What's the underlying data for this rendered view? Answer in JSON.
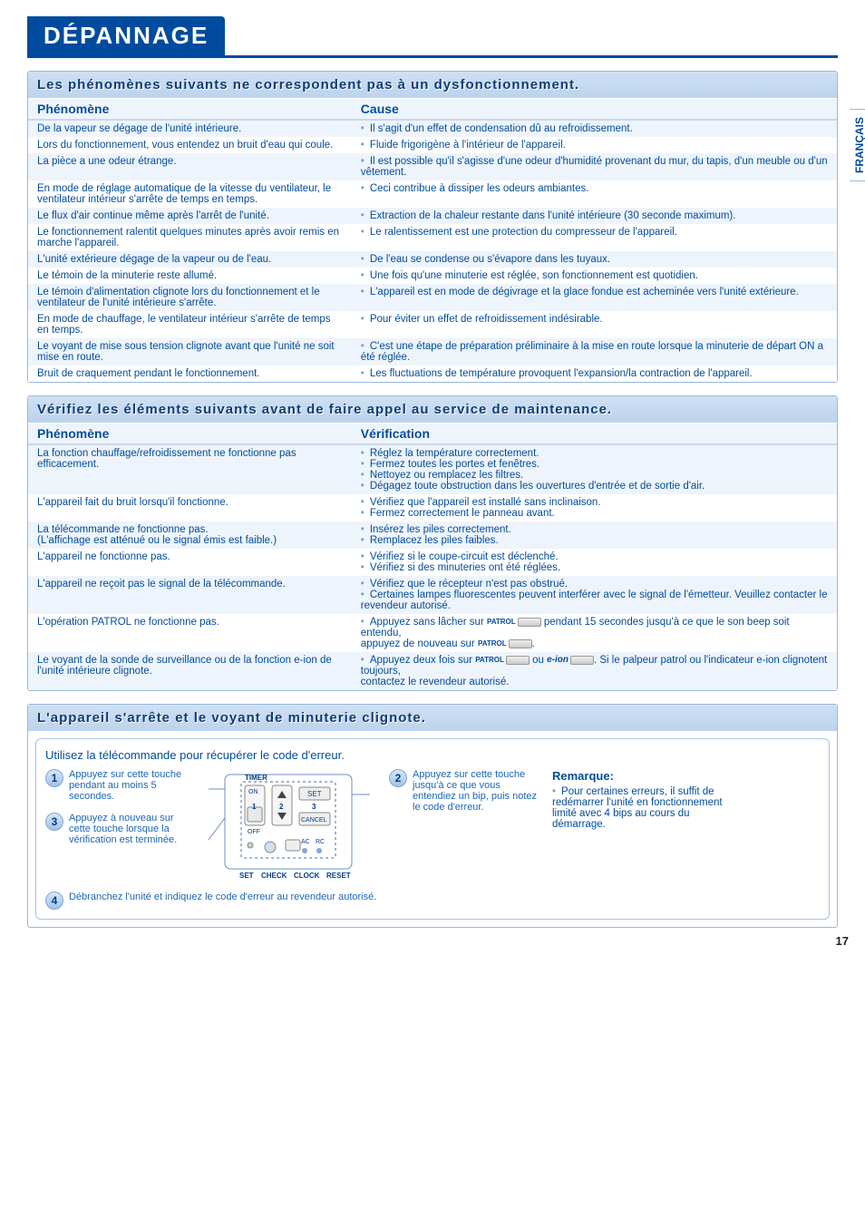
{
  "title": "DÉPANNAGE",
  "side_tab": "FRANÇAIS",
  "page_number": "17",
  "section1": {
    "header": "Les phénomènes suivants ne correspondent pas à un dysfonctionnement.",
    "col_ph": "Phénomène",
    "col_cause": "Cause",
    "rows": [
      {
        "ph": "De la vapeur se dégage de l'unité intérieure.",
        "cause": [
          "Il s'agit d'un effet de condensation dû au refroidissement."
        ]
      },
      {
        "ph": "Lors du fonctionnement, vous entendez un bruit d'eau qui coule.",
        "cause": [
          "Fluide frigorigène à l'intérieur de l'appareil."
        ]
      },
      {
        "ph": "La pièce a une odeur étrange.",
        "cause": [
          "Il est possible qu'il s'agisse d'une odeur d'humidité provenant du mur, du tapis, d'un meuble ou d'un vêtement."
        ]
      },
      {
        "ph": "En mode de réglage automatique de la vitesse du ventilateur, le ventilateur intérieur s'arrête de temps en temps.",
        "cause": [
          "Ceci contribue à dissiper les odeurs ambiantes."
        ]
      },
      {
        "ph": "Le flux d'air continue même après l'arrêt de l'unité.",
        "cause": [
          "Extraction de la chaleur restante dans l'unité intérieure (30 seconde maximum)."
        ]
      },
      {
        "ph": "Le fonctionnement ralentit quelques minutes après avoir remis en marche l'appareil.",
        "cause": [
          "Le ralentissement est une protection du compresseur de l'appareil."
        ]
      },
      {
        "ph": "L'unité extérieure dégage de la vapeur ou de l'eau.",
        "cause": [
          "De l'eau se condense ou s'évapore dans les tuyaux."
        ]
      },
      {
        "ph": "Le témoin de la minuterie reste allumé.",
        "cause": [
          "Une fois qu'une minuterie est réglée, son fonctionnement est quotidien."
        ]
      },
      {
        "ph": "Le témoin d'alimentation clignote lors du fonctionnement et le ventilateur de l'unité intérieure s'arrête.",
        "cause": [
          "L'appareil est en mode de dégivrage et la glace fondue est acheminée vers l'unité extérieure."
        ]
      },
      {
        "ph": "En mode de chauffage, le ventilateur intérieur s'arrête de temps en temps.",
        "cause": [
          "Pour éviter un effet de refroidissement indésirable."
        ]
      },
      {
        "ph": "Le voyant de mise sous tension clignote avant que l'unité ne soit mise en route.",
        "cause": [
          "C'est une étape de préparation préliminaire à la mise en route lorsque la minuterie de départ ON a été réglée."
        ]
      },
      {
        "ph": "Bruit de craquement pendant le fonctionnement.",
        "cause": [
          "Les fluctuations de température provoquent l'expansion/la contraction de l'appareil."
        ]
      }
    ]
  },
  "section2": {
    "header": "Vérifiez les éléments suivants avant de faire appel au service de maintenance.",
    "col_ph": "Phénomène",
    "col_ver": "Vérification",
    "rows": [
      {
        "ph": "La fonction chauffage/refroidissement ne fonctionne pas efficacement.",
        "ver": [
          "Réglez la température correctement.",
          "Fermez toutes les portes et fenêtres.",
          "Nettoyez ou remplacez les filtres.",
          "Dégagez toute obstruction dans les ouvertures d'entrée et de sortie d'air."
        ]
      },
      {
        "ph": "L'appareil fait du bruit lorsqu'il fonctionne.",
        "ver": [
          "Vérifiez que l'appareil est installé sans inclinaison.",
          "Fermez correctement le panneau avant."
        ]
      },
      {
        "ph": "La télécommande ne fonctionne pas.\n(L'affichage est atténué ou le signal émis est faible.)",
        "ver": [
          "Insérez les piles correctement.",
          "Remplacez les piles faibles."
        ]
      },
      {
        "ph": "L'appareil ne fonctionne pas.",
        "ver": [
          "Vérifiez si le coupe-circuit est déclenché.",
          "Vérifiez si des minuteries ont été réglées."
        ]
      },
      {
        "ph": "L'appareil ne reçoit pas le signal de la télécommande.",
        "ver": [
          "Vérifiez que le récepteur n'est pas obstrué.",
          "Certaines lampes fluorescentes peuvent interférer avec le signal de l'émetteur. Veuillez contacter le revendeur autorisé."
        ]
      }
    ],
    "row_patrol": {
      "ph": "L'opération PATROL ne fonctionne pas.",
      "pre": "Appuyez sans lâcher sur",
      "patrol_label": "PATROL",
      "mid": "pendant 15 secondes jusqu'à ce que le son beep soit entendu,",
      "post": "appuyez de nouveau sur",
      "end": "."
    },
    "row_eion": {
      "ph": "Le voyant de la sonde de surveillance ou de la fonction e-ion de l'unité intérieure clignote.",
      "pre": "Appuyez deux fois sur",
      "patrol_label": "PATROL",
      "or": "ou",
      "eion_label": "e-ion",
      "post": ". Si le palpeur patrol ou l'indicateur e-ion clignotent toujours,",
      "contact": "contactez le revendeur autorisé."
    }
  },
  "section3": {
    "header": "L'appareil s'arrête et le voyant de minuterie clignote.",
    "sub": "Utilisez la télécommande pour récupérer le code d'erreur.",
    "step1": "Appuyez sur cette touche pendant au moins 5 secondes.",
    "step2": "Appuyez sur cette touche jusqu'à ce que vous entendiez un bip, puis notez le code d'erreur.",
    "step3": "Appuyez à nouveau sur cette touche lorsque la vérification est terminée.",
    "step4": "Débranchez l'unité et indiquez le code d'erreur au revendeur autorisé.",
    "remote": {
      "timer": "TIMER",
      "on": "ON",
      "off": "OFF",
      "set_btn": "SET",
      "cancel": "CANCEL",
      "ac": "AC",
      "rc": "RC",
      "set": "SET",
      "check": "CHECK",
      "clock": "CLOCK",
      "reset": "RESET",
      "b1": "1",
      "b2": "2",
      "b3": "3"
    },
    "remark_title": "Remarque:",
    "remark_text": "Pour certaines erreurs, il suffit de redémarrer l'unité en fonctionnement limité avec 4 bips au cours du démarrage."
  }
}
